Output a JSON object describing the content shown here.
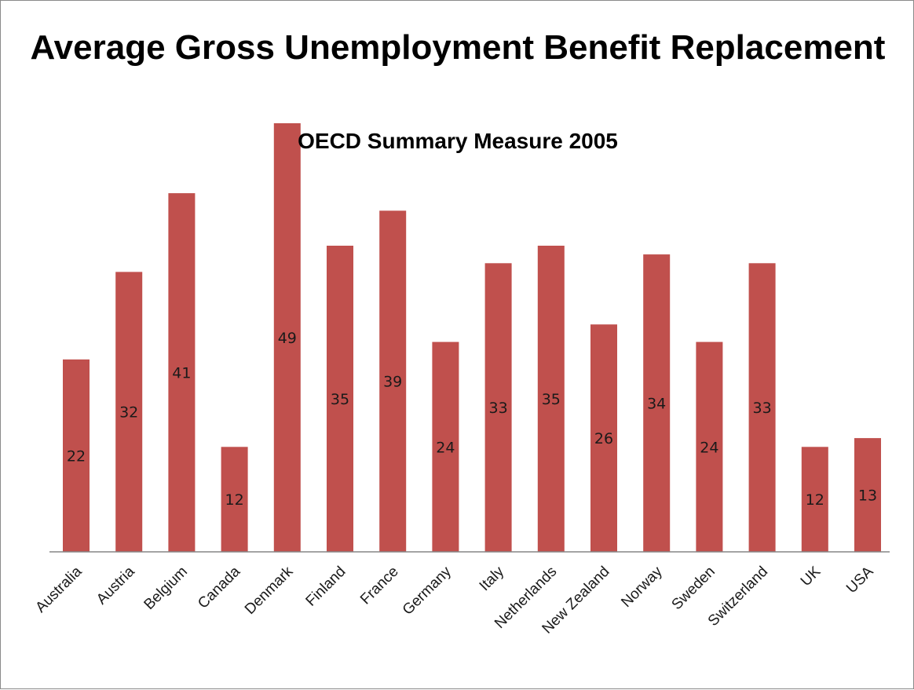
{
  "chart_data": {
    "type": "bar",
    "title": "Average Gross Unemployment Benefit Replacement",
    "subtitle": "OECD Summary Measure 2005",
    "categories": [
      "Australia",
      "Austria",
      "Belgium",
      "Canada",
      "Denmark",
      "Finland",
      "France",
      "Germany",
      "Italy",
      "Netherlands",
      "New Zealand",
      "Norway",
      "Sweden",
      "Switzerland",
      "UK",
      "USA"
    ],
    "values": [
      22,
      32,
      41,
      12,
      49,
      35,
      39,
      24,
      33,
      35,
      26,
      34,
      24,
      33,
      12,
      13
    ],
    "xlabel": "",
    "ylabel": "",
    "ylim": [
      0,
      49
    ],
    "grid": false,
    "legend": "none",
    "bar_color": "#c0504d",
    "axis_color": "#868686"
  }
}
